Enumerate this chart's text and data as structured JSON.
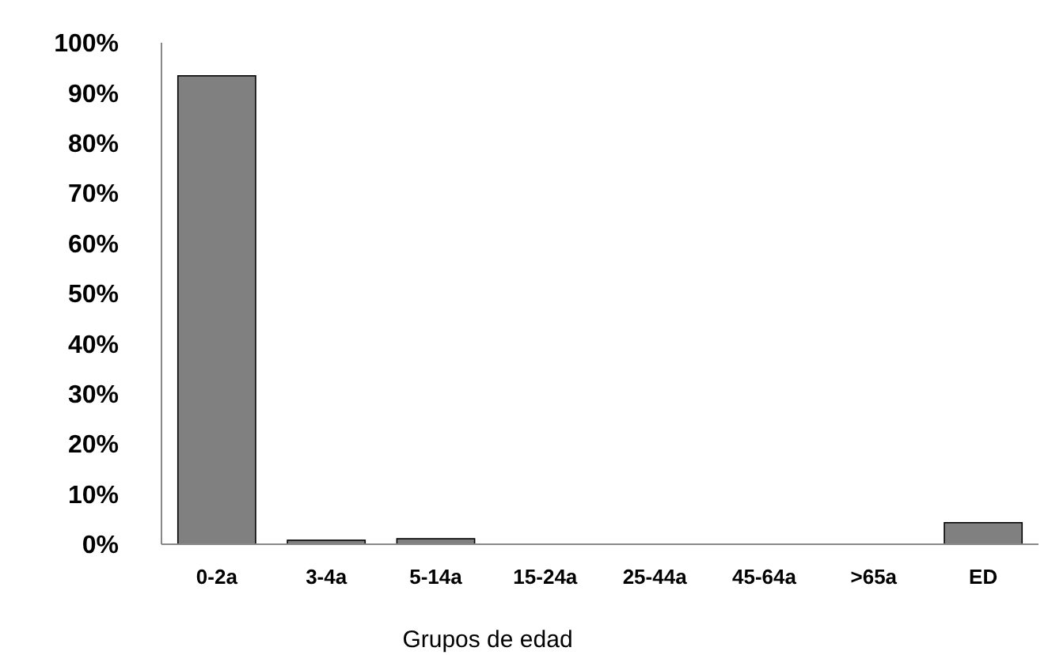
{
  "chart_data": {
    "type": "bar",
    "xlabel": "Grupos de edad",
    "categories": [
      "0-2a",
      "3-4a",
      "5-14a",
      "15-24a",
      "25-44a",
      "45-64a",
      ">65a",
      "ED"
    ],
    "values": [
      93.4,
      0.8,
      1.1,
      0,
      0,
      0,
      0,
      4.3
    ],
    "color": "#808080",
    "ylim": [
      0,
      100
    ],
    "yticks": [
      {
        "value": 0,
        "label": "0%"
      },
      {
        "value": 10,
        "label": "10%"
      },
      {
        "value": 20,
        "label": "20%"
      },
      {
        "value": 30,
        "label": "30%"
      },
      {
        "value": 40,
        "label": "40%"
      },
      {
        "value": 50,
        "label": "50%"
      },
      {
        "value": 60,
        "label": "60%"
      },
      {
        "value": 70,
        "label": "70%"
      },
      {
        "value": 80,
        "label": "80%"
      },
      {
        "value": 90,
        "label": "90%"
      },
      {
        "value": 100,
        "label": "100%"
      }
    ],
    "grid": false
  }
}
